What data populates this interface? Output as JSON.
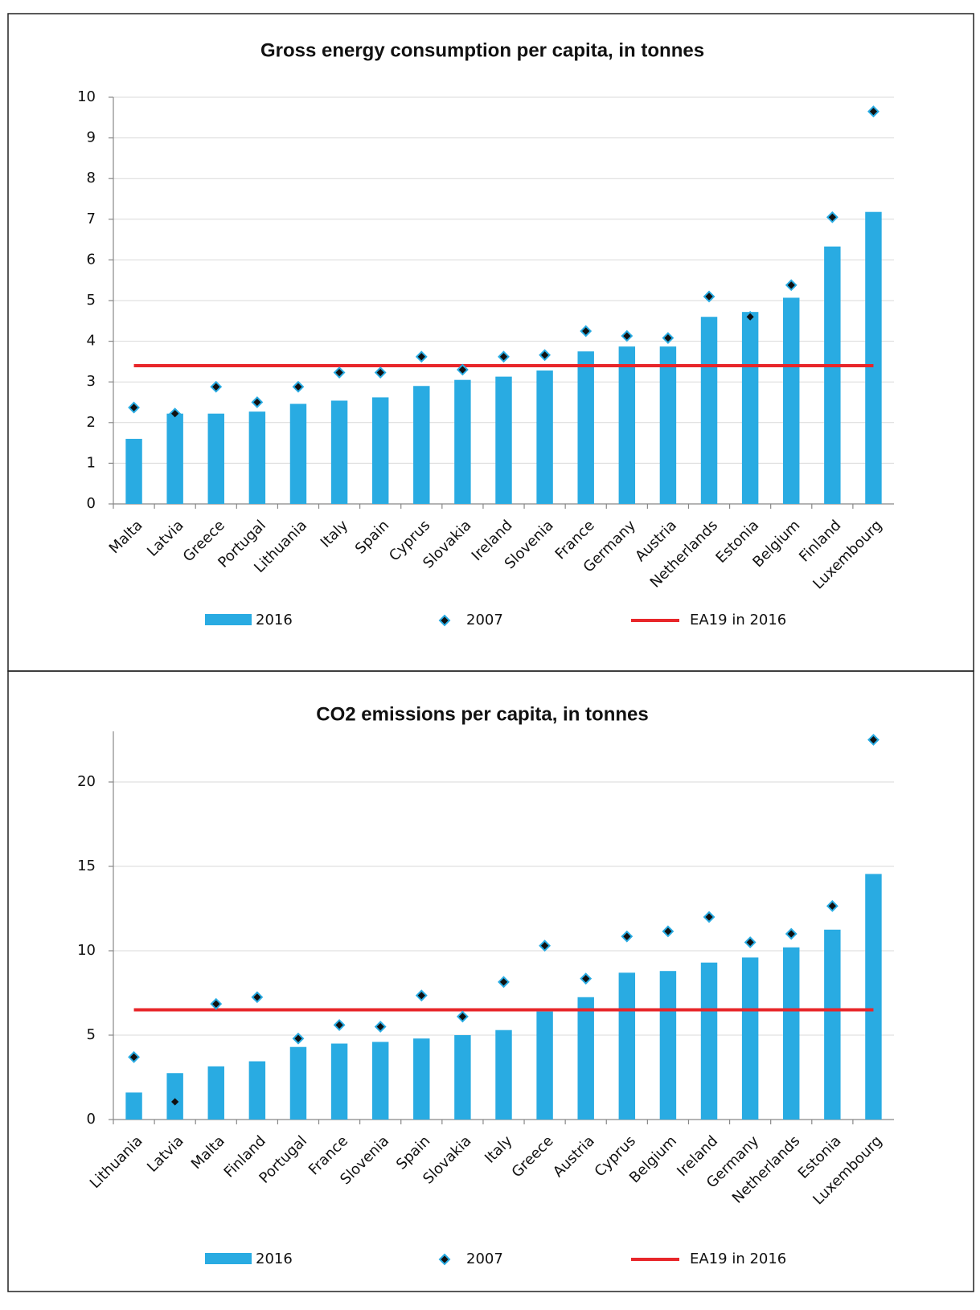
{
  "chart_data": [
    {
      "type": "bar",
      "title": "Gross energy consumption per capita, in tonnes",
      "categories": [
        "Malta",
        "Latvia",
        "Greece",
        "Portugal",
        "Lithuania",
        "Italy",
        "Spain",
        "Cyprus",
        "Slovakia",
        "Ireland",
        "Slovenia",
        "France",
        "Germany",
        "Austria",
        "Netherlands",
        "Estonia",
        "Belgium",
        "Finland",
        "Luxembourg"
      ],
      "series": [
        {
          "name": "2016",
          "type": "bar",
          "color": "#29abe2",
          "values": [
            1.6,
            2.22,
            2.22,
            2.27,
            2.46,
            2.54,
            2.62,
            2.9,
            3.05,
            3.13,
            3.28,
            3.75,
            3.87,
            3.87,
            4.6,
            4.72,
            5.07,
            6.33,
            7.18
          ]
        },
        {
          "name": "2007",
          "type": "scatter",
          "color": "#29abe2",
          "values": [
            2.37,
            2.22,
            2.88,
            2.5,
            2.88,
            3.23,
            3.23,
            3.62,
            3.3,
            3.62,
            3.66,
            4.25,
            4.13,
            4.08,
            5.1,
            4.6,
            5.38,
            7.05,
            9.65
          ]
        },
        {
          "name": "EA19 in 2016",
          "type": "line",
          "color": "#e8262a",
          "value": 3.4
        }
      ],
      "ylim": [
        0,
        10
      ],
      "yticks": [
        0,
        1,
        2,
        3,
        4,
        5,
        6,
        7,
        8,
        9,
        10
      ],
      "grid": true
    },
    {
      "type": "bar",
      "title": "CO2 emissions per capita, in tonnes",
      "categories": [
        "Lithuania",
        "Latvia",
        "Malta",
        "Finland",
        "Portugal",
        "France",
        "Slovenia",
        "Spain",
        "Slovakia",
        "Italy",
        "Greece",
        "Austria",
        "Cyprus",
        "Belgium",
        "Ireland",
        "Germany",
        "Netherlands",
        "Estonia",
        "Luxembourg"
      ],
      "series": [
        {
          "name": "2016",
          "type": "bar",
          "color": "#29abe2",
          "values": [
            1.6,
            2.75,
            3.15,
            3.45,
            4.3,
            4.5,
            4.6,
            4.8,
            5.0,
            5.3,
            6.4,
            7.25,
            8.7,
            8.8,
            9.3,
            9.6,
            10.2,
            11.25,
            14.55
          ]
        },
        {
          "name": "2007",
          "type": "scatter",
          "color": "#29abe2",
          "values": [
            3.7,
            1.05,
            6.85,
            7.25,
            4.8,
            5.6,
            5.5,
            7.35,
            6.1,
            8.15,
            10.3,
            8.35,
            10.85,
            11.15,
            12.0,
            10.5,
            11.0,
            12.65,
            22.5
          ]
        },
        {
          "name": "EA19 in 2016",
          "type": "line",
          "color": "#e8262a",
          "value": 6.5
        }
      ],
      "ylim": [
        0,
        23
      ],
      "yticks": [
        0,
        5,
        10,
        15,
        20
      ],
      "grid": true
    }
  ]
}
